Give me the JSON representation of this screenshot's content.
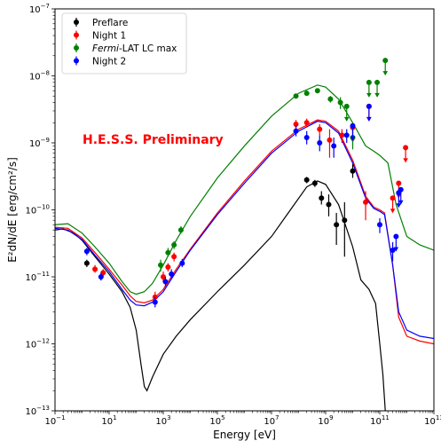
{
  "chart_data": {
    "type": "scatter",
    "xlabel": "Energy [eV]",
    "ylabel": "E²dN/dE [erg/cm²/s]",
    "xscale": "log",
    "yscale": "log",
    "xlim": [
      0.1,
      10000000000000
    ],
    "ylim": [
      1e-13,
      1e-07
    ],
    "x_ticks": [
      {
        "value": 0.1,
        "base": "10",
        "exp": "−1"
      },
      {
        "value": 10,
        "base": "10",
        "exp": "1"
      },
      {
        "value": 1000,
        "base": "10",
        "exp": "3"
      },
      {
        "value": 100000,
        "base": "10",
        "exp": "5"
      },
      {
        "value": 10000000,
        "base": "10",
        "exp": "7"
      },
      {
        "value": 1000000000,
        "base": "10",
        "exp": "9"
      },
      {
        "value": 100000000000,
        "base": "10",
        "exp": "11"
      },
      {
        "value": 10000000000000,
        "base": "10",
        "exp": "13"
      }
    ],
    "y_ticks": [
      {
        "value": 1e-13,
        "base": "10",
        "exp": "−13"
      },
      {
        "value": 1e-12,
        "base": "10",
        "exp": "−12"
      },
      {
        "value": 1e-11,
        "base": "10",
        "exp": "−11"
      },
      {
        "value": 1e-10,
        "base": "10",
        "exp": "−10"
      },
      {
        "value": 1e-09,
        "base": "10",
        "exp": "−9"
      },
      {
        "value": 1e-08,
        "base": "10",
        "exp": "−8"
      },
      {
        "value": 1e-07,
        "base": "10",
        "exp": "−7"
      }
    ],
    "annotation": "H.E.S.S. Preliminary",
    "legend_position": "top-left",
    "series": [
      {
        "name": "Preflare",
        "legend_label_parts": [
          {
            "text": "Preflare",
            "italic": false
          }
        ],
        "color": "#000000",
        "model": [
          [
            0.1,
            5e-11
          ],
          [
            0.2,
            5.2e-11
          ],
          [
            0.5,
            4.5e-11
          ],
          [
            1,
            3.5e-11
          ],
          [
            3,
            2e-11
          ],
          [
            10,
            1.1e-11
          ],
          [
            30,
            6e-12
          ],
          [
            60,
            3.5e-12
          ],
          [
            100,
            1.6e-12
          ],
          [
            150,
            5e-13
          ],
          [
            200,
            2.3e-13
          ],
          [
            250,
            2e-13
          ],
          [
            400,
            3.2e-13
          ],
          [
            1000,
            7e-13
          ],
          [
            3000,
            1.3e-12
          ],
          [
            10000,
            2.3e-12
          ],
          [
            100000,
            6e-12
          ],
          [
            1000000,
            1.5e-11
          ],
          [
            10000000,
            4e-11
          ],
          [
            50000000,
            1e-10
          ],
          [
            200000000,
            2.2e-10
          ],
          [
            500000000,
            2.7e-10
          ],
          [
            1000000000,
            2.4e-10
          ],
          [
            3000000000,
            1.2e-10
          ],
          [
            10000000000,
            2.8e-11
          ],
          [
            20000000000,
            9e-12
          ],
          [
            40000000000,
            6.5e-12
          ],
          [
            70000000000,
            4e-12
          ],
          [
            100000000000,
            1e-12
          ],
          [
            130000000000,
            3.5e-13
          ],
          [
            160000000000,
            1e-13
          ]
        ],
        "points": [
          {
            "x": 1.5,
            "y": 1.6e-11,
            "ylo": 1.4e-11,
            "yhi": 1.8e-11
          },
          {
            "x": 200000000,
            "y": 2.8e-10,
            "ylo": 2.5e-10,
            "yhi": 3.1e-10
          },
          {
            "x": 400000000,
            "y": 2.5e-10,
            "ylo": 2.2e-10,
            "yhi": 2.8e-10
          },
          {
            "x": 700000000,
            "y": 1.5e-10,
            "ylo": 1.2e-10,
            "yhi": 1.9e-10
          },
          {
            "x": 1300000000,
            "y": 1.2e-10,
            "ylo": 8e-11,
            "yhi": 1.7e-10
          },
          {
            "x": 2500000000,
            "y": 6e-11,
            "ylo": 3e-11,
            "yhi": 9e-11
          },
          {
            "x": 5000000000,
            "y": 7e-11,
            "ylo": 2e-11,
            "yhi": 1.3e-10
          },
          {
            "x": 10000000000,
            "y": 3.8e-10,
            "ylo": 3e-10,
            "yhi": 4.8e-10
          }
        ],
        "upper_limits": []
      },
      {
        "name": "Night 1",
        "legend_label_parts": [
          {
            "text": "Night 1",
            "italic": false
          }
        ],
        "color": "#ff0000",
        "model": [
          [
            0.1,
            5.5e-11
          ],
          [
            0.3,
            5.3e-11
          ],
          [
            1,
            3.8e-11
          ],
          [
            3,
            2.3e-11
          ],
          [
            10,
            1.3e-11
          ],
          [
            30,
            7.5e-12
          ],
          [
            60,
            5.2e-12
          ],
          [
            100,
            4.3e-12
          ],
          [
            200,
            4.1e-12
          ],
          [
            400,
            4.5e-12
          ],
          [
            1000,
            6.5e-12
          ],
          [
            3000,
            1.3e-11
          ],
          [
            10000,
            2.6e-11
          ],
          [
            100000,
            9e-11
          ],
          [
            1000000,
            2.7e-10
          ],
          [
            10000000,
            7.5e-10
          ],
          [
            100000000,
            1.6e-09
          ],
          [
            500000000,
            2.2e-09
          ],
          [
            1000000000,
            2.1e-09
          ],
          [
            3000000000,
            1.5e-09
          ],
          [
            10000000000,
            5.5e-10
          ],
          [
            30000000000,
            1.6e-10
          ],
          [
            60000000000,
            1.1e-10
          ],
          [
            100000000000,
            1e-10
          ],
          [
            150000000000,
            9e-11
          ],
          [
            300000000000,
            1.5e-11
          ],
          [
            500000000000,
            2.5e-12
          ],
          [
            1000000000000,
            1.3e-12
          ],
          [
            3000000000000,
            1.1e-12
          ],
          [
            10000000000000,
            1e-12
          ]
        ],
        "points": [
          {
            "x": 3,
            "y": 1.3e-11,
            "ylo": 1.15e-11,
            "yhi": 1.5e-11
          },
          {
            "x": 6,
            "y": 1.15e-11,
            "ylo": 1e-11,
            "yhi": 1.3e-11
          },
          {
            "x": 500,
            "y": 5e-12,
            "ylo": 4.2e-12,
            "yhi": 6e-12
          },
          {
            "x": 1000,
            "y": 1e-11,
            "ylo": 8.5e-12,
            "yhi": 1.2e-11
          },
          {
            "x": 1500,
            "y": 1.4e-11,
            "ylo": 1.2e-11,
            "yhi": 1.6e-11
          },
          {
            "x": 2500,
            "y": 2e-11,
            "ylo": 1.7e-11,
            "yhi": 2.3e-11
          },
          {
            "x": 80000000,
            "y": 1.9e-09,
            "ylo": 1.6e-09,
            "yhi": 2.2e-09
          },
          {
            "x": 200000000,
            "y": 2e-09,
            "ylo": 1.7e-09,
            "yhi": 2.3e-09
          },
          {
            "x": 600000000,
            "y": 1.6e-09,
            "ylo": 1.3e-09,
            "yhi": 1.9e-09
          },
          {
            "x": 1400000000,
            "y": 1.1e-09,
            "ylo": 6e-10,
            "yhi": 1.6e-09
          },
          {
            "x": 4000000000,
            "y": 1.3e-09,
            "ylo": 1e-09,
            "yhi": 1.6e-09
          },
          {
            "x": 30000000000,
            "y": 1.3e-10,
            "ylo": 7e-11,
            "yhi": 1.9e-10
          }
        ],
        "upper_limits": [
          {
            "x": 10000000000,
            "y": 1.7e-09
          },
          {
            "x": 40000000000,
            "y": 3.5e-09
          },
          {
            "x": 300000000000,
            "y": 1.5e-10
          },
          {
            "x": 500000000000,
            "y": 2.5e-10
          },
          {
            "x": 900000000000,
            "y": 8.5e-10
          }
        ]
      },
      {
        "name": "Fermi-LAT LC max",
        "legend_label_parts": [
          {
            "text": "Fermi",
            "italic": true
          },
          {
            "text": "-LAT LC max",
            "italic": false
          }
        ],
        "color": "#008000",
        "model": [
          [
            0.1,
            6e-11
          ],
          [
            0.3,
            6.2e-11
          ],
          [
            1,
            4.5e-11
          ],
          [
            3,
            2.8e-11
          ],
          [
            10,
            1.6e-11
          ],
          [
            30,
            8.5e-12
          ],
          [
            60,
            6e-12
          ],
          [
            100,
            5.5e-12
          ],
          [
            200,
            6e-12
          ],
          [
            400,
            8e-12
          ],
          [
            1000,
            1.5e-11
          ],
          [
            3000,
            3.5e-11
          ],
          [
            10000,
            8e-11
          ],
          [
            100000,
            3e-10
          ],
          [
            1000000,
            9e-10
          ],
          [
            10000000,
            2.5e-09
          ],
          [
            100000000,
            5.5e-09
          ],
          [
            500000000,
            7.3e-09
          ],
          [
            1000000000,
            6.8e-09
          ],
          [
            3000000000,
            4.5e-09
          ],
          [
            10000000000,
            2e-09
          ],
          [
            30000000000,
            9e-10
          ],
          [
            60000000000,
            7.5e-10
          ],
          [
            100000000000,
            6.5e-10
          ],
          [
            200000000000,
            5e-10
          ],
          [
            400000000000,
            1.2e-10
          ],
          [
            1000000000000,
            4e-11
          ],
          [
            3000000000000,
            3e-11
          ],
          [
            10000000000000,
            2.5e-11
          ]
        ],
        "points": [
          {
            "x": 800,
            "y": 1.5e-11,
            "ylo": 1.2e-11,
            "yhi": 1.8e-11
          },
          {
            "x": 1500,
            "y": 2.3e-11,
            "ylo": 2e-11,
            "yhi": 2.7e-11
          },
          {
            "x": 2500,
            "y": 3e-11,
            "ylo": 2.6e-11,
            "yhi": 3.4e-11
          },
          {
            "x": 4500,
            "y": 5e-11,
            "ylo": 4.4e-11,
            "yhi": 5.7e-11
          },
          {
            "x": 80000000,
            "y": 5e-09,
            "ylo": 4.6e-09,
            "yhi": 5.4e-09
          },
          {
            "x": 200000000,
            "y": 5.5e-09,
            "ylo": 5.1e-09,
            "yhi": 6e-09
          },
          {
            "x": 500000000,
            "y": 6e-09,
            "ylo": 5.5e-09,
            "yhi": 6.5e-09
          },
          {
            "x": 1500000000,
            "y": 4.5e-09,
            "ylo": 4e-09,
            "yhi": 5e-09
          },
          {
            "x": 3500000000,
            "y": 4e-09,
            "ylo": 3.2e-09,
            "yhi": 4.8e-09
          },
          {
            "x": 10000000000,
            "y": 1.2e-09,
            "ylo": 8e-10,
            "yhi": 1.7e-09
          }
        ],
        "upper_limits": [
          {
            "x": 6000000000,
            "y": 3.5e-09
          },
          {
            "x": 40000000000,
            "y": 8e-09
          },
          {
            "x": 80000000000,
            "y": 8e-09
          },
          {
            "x": 160000000000,
            "y": 1.7e-08
          }
        ]
      },
      {
        "name": "Night 2",
        "legend_label_parts": [
          {
            "text": "Night 2",
            "italic": false
          }
        ],
        "color": "#0000ff",
        "model": [
          [
            0.1,
            5.3e-11
          ],
          [
            0.3,
            5e-11
          ],
          [
            1,
            3.6e-11
          ],
          [
            3,
            2.1e-11
          ],
          [
            10,
            1.2e-11
          ],
          [
            30,
            6.5e-12
          ],
          [
            60,
            4.5e-12
          ],
          [
            100,
            3.8e-12
          ],
          [
            200,
            3.7e-12
          ],
          [
            400,
            4.2e-12
          ],
          [
            1000,
            6e-12
          ],
          [
            3000,
            1.2e-11
          ],
          [
            10000,
            2.5e-11
          ],
          [
            100000,
            8.5e-11
          ],
          [
            1000000,
            2.5e-10
          ],
          [
            10000000,
            7e-10
          ],
          [
            100000000,
            1.5e-09
          ],
          [
            500000000,
            2.1e-09
          ],
          [
            1000000000,
            2e-09
          ],
          [
            3000000000,
            1.4e-09
          ],
          [
            10000000000,
            5e-10
          ],
          [
            30000000000,
            1.5e-10
          ],
          [
            60000000000,
            1.05e-10
          ],
          [
            100000000000,
            9.5e-11
          ],
          [
            150000000000,
            8.5e-11
          ],
          [
            300000000000,
            1.5e-11
          ],
          [
            500000000000,
            3e-12
          ],
          [
            1000000000000,
            1.6e-12
          ],
          [
            3000000000000,
            1.3e-12
          ],
          [
            10000000000000,
            1.2e-12
          ]
        ],
        "points": [
          {
            "x": 1.5,
            "y": 2.4e-11,
            "ylo": 2.1e-11,
            "yhi": 2.7e-11
          },
          {
            "x": 5,
            "y": 1e-11,
            "ylo": 8.8e-12,
            "yhi": 1.15e-11
          },
          {
            "x": 500,
            "y": 4.2e-12,
            "ylo": 3.5e-12,
            "yhi": 5e-12
          },
          {
            "x": 1200,
            "y": 8.5e-12,
            "ylo": 7.2e-12,
            "yhi": 1e-11
          },
          {
            "x": 2000,
            "y": 1.1e-11,
            "ylo": 9.5e-12,
            "yhi": 1.3e-11
          },
          {
            "x": 5000,
            "y": 1.6e-11,
            "ylo": 1.4e-11,
            "yhi": 1.85e-11
          },
          {
            "x": 80000000,
            "y": 1.5e-09,
            "ylo": 1.25e-09,
            "yhi": 1.8e-09
          },
          {
            "x": 200000000,
            "y": 1.2e-09,
            "ylo": 9.5e-10,
            "yhi": 1.5e-09
          },
          {
            "x": 600000000,
            "y": 1e-09,
            "ylo": 7.5e-10,
            "yhi": 1.3e-09
          },
          {
            "x": 2000000000,
            "y": 9e-10,
            "ylo": 6e-10,
            "yhi": 1.2e-09
          },
          {
            "x": 6000000000,
            "y": 1.3e-09,
            "ylo": 1e-09,
            "yhi": 1.6e-09
          },
          {
            "x": 100000000000,
            "y": 6e-11,
            "ylo": 4.5e-11,
            "yhi": 7.5e-11
          },
          {
            "x": 300000000000,
            "y": 2.5e-11,
            "ylo": 1.7e-11,
            "yhi": 3.3e-11
          }
        ],
        "upper_limits": [
          {
            "x": 10000000000,
            "y": 1.8e-09
          },
          {
            "x": 40000000000,
            "y": 3.5e-09
          },
          {
            "x": 400000000000,
            "y": 4e-11
          },
          {
            "x": 500000000000,
            "y": 1.8e-10
          },
          {
            "x": 600000000000,
            "y": 2e-10
          }
        ]
      }
    ]
  }
}
